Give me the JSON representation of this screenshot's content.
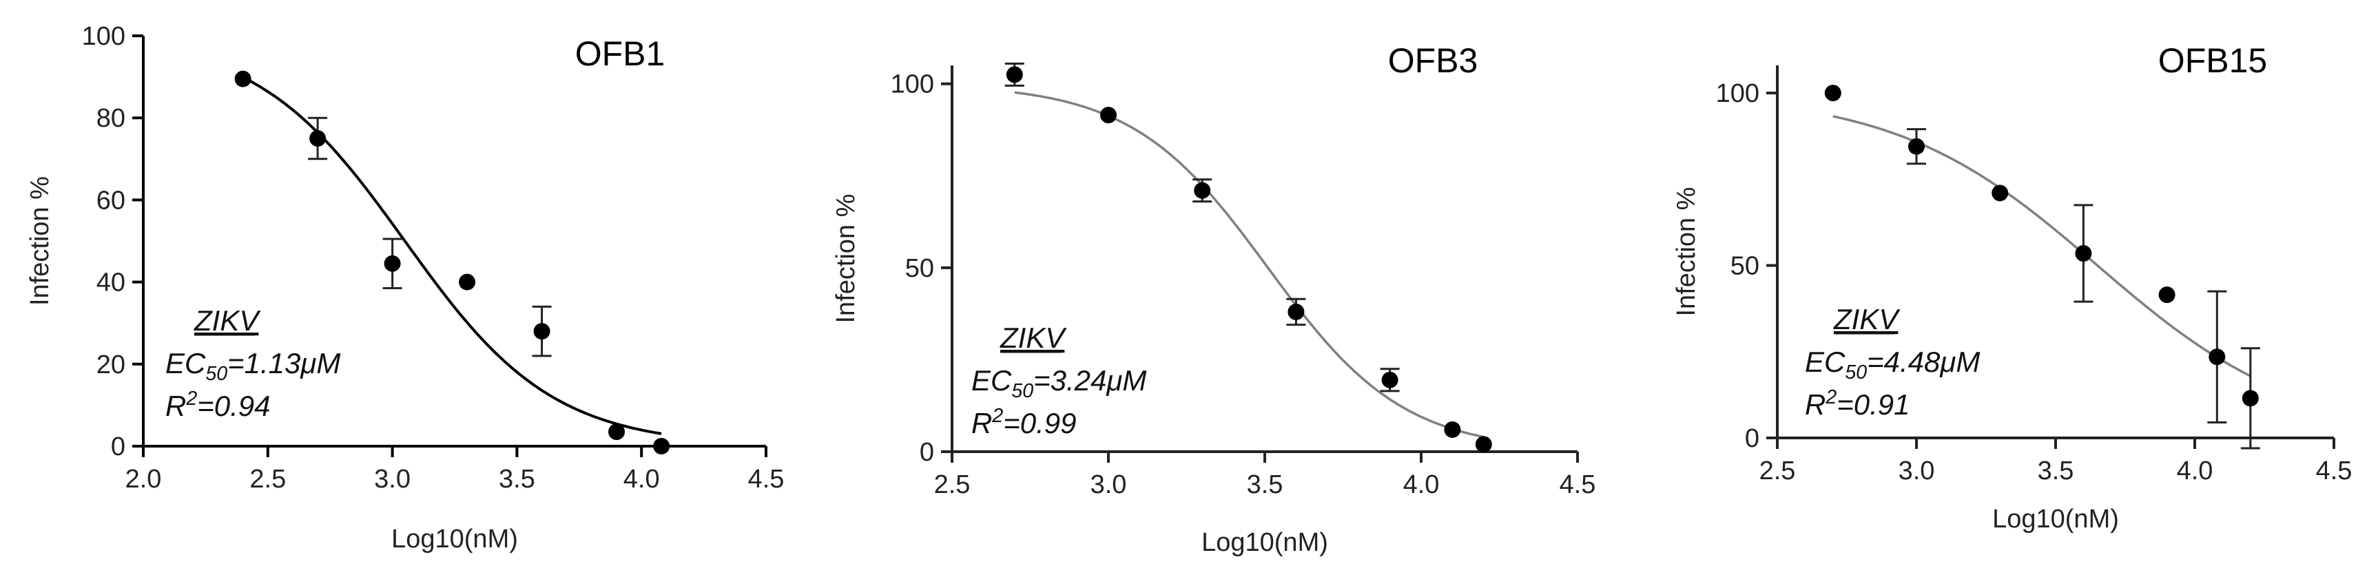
{
  "chart_data": [
    {
      "type": "scatter",
      "title": "OFB1",
      "xlabel": "Log10(nM)",
      "ylabel": "Infection %",
      "xlim": [
        2.0,
        4.5
      ],
      "ylim": [
        0,
        100
      ],
      "xticks": [
        "2.0",
        "2.5",
        "3.0",
        "3.5",
        "4.0",
        "4.5"
      ],
      "yticks": [
        "0",
        "20",
        "40",
        "60",
        "80",
        "100"
      ],
      "grid": false,
      "series": [
        {
          "x": [
            2.4,
            2.7,
            3.0,
            3.3,
            3.6,
            3.9,
            4.08
          ],
          "values": [
            89.5,
            75,
            44.5,
            40,
            28,
            3.5,
            0
          ],
          "error": [
            0,
            5,
            6,
            0,
            6,
            0,
            0
          ]
        }
      ],
      "fit": {
        "top": 100,
        "bottom": 0,
        "log_ec50": 3.05,
        "hill": -1.46,
        "x_range": [
          2.4,
          4.08
        ],
        "color": "#000000"
      },
      "annotation": {
        "virus": "ZIKV",
        "ec_prefix": "EC",
        "ec_sub": "50",
        "ec_value": "=1.13μM",
        "r_prefix": "R",
        "r_sup": "2",
        "r_value": "=0.94"
      }
    },
    {
      "type": "scatter",
      "title": "OFB3",
      "xlabel": "Log10(nM)",
      "ylabel": "Infection %",
      "xlim": [
        2.5,
        4.5
      ],
      "ylim": [
        0,
        105
      ],
      "xticks": [
        "2.5",
        "3.0",
        "3.5",
        "4.0",
        "4.5"
      ],
      "yticks": [
        "0",
        "50",
        "100"
      ],
      "grid": false,
      "series": [
        {
          "x": [
            2.7,
            3.0,
            3.3,
            3.6,
            3.9,
            4.1,
            4.2
          ],
          "values": [
            102.5,
            91.5,
            71,
            38,
            19.5,
            6,
            2
          ],
          "error": [
            3,
            0,
            3,
            3.5,
            3,
            0,
            0
          ]
        }
      ],
      "fit": {
        "top": 100,
        "bottom": 0,
        "log_ec50": 3.51,
        "hill": -2.0,
        "x_range": [
          2.7,
          4.2
        ],
        "color": "#808080"
      },
      "annotation": {
        "virus": "ZIKV",
        "ec_prefix": "EC",
        "ec_sub": "50",
        "ec_value": "=3.24μM",
        "r_prefix": "R",
        "r_sup": "2",
        "r_value": "=0.99"
      }
    },
    {
      "type": "scatter",
      "title": "OFB15",
      "xlabel": "Log10(nM)",
      "ylabel": "Infection %",
      "xlim": [
        2.5,
        4.5
      ],
      "ylim": [
        0,
        108
      ],
      "xticks": [
        "2.5",
        "3.0",
        "3.5",
        "4.0",
        "4.5"
      ],
      "yticks": [
        "0",
        "50",
        "100"
      ],
      "grid": false,
      "series": [
        {
          "x": [
            2.7,
            3.0,
            3.3,
            3.6,
            3.9,
            4.08,
            4.2
          ],
          "values": [
            100,
            84.5,
            71,
            53.5,
            41.5,
            23.5,
            11.5
          ],
          "error": [
            0,
            5,
            0,
            14,
            0,
            19,
            14.5
          ]
        }
      ],
      "fit": {
        "top": 100,
        "bottom": 0,
        "log_ec50": 3.65,
        "hill": -1.2,
        "x_range": [
          2.7,
          4.2
        ],
        "color": "#808080"
      },
      "annotation": {
        "virus": "ZIKV",
        "ec_prefix": "EC",
        "ec_sub": "50",
        "ec_value": "=4.48μM",
        "r_prefix": "R",
        "r_sup": "2",
        "r_value": "=0.91"
      }
    }
  ]
}
